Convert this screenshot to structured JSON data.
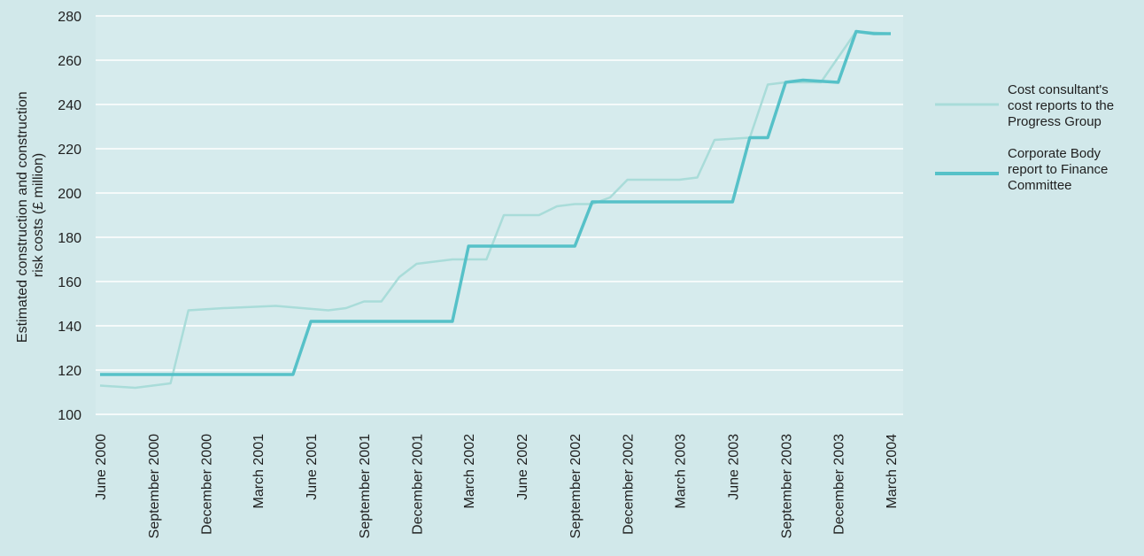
{
  "chart_data": {
    "type": "line",
    "ylabel_lines": [
      "Estimated construction and construction",
      "risk costs (£ million)"
    ],
    "ylim": [
      100,
      280
    ],
    "yticks": [
      100,
      120,
      140,
      160,
      180,
      200,
      220,
      240,
      260,
      280
    ],
    "xlim": [
      "2000-06-01",
      "2004-03-01"
    ],
    "xticks": [
      {
        "date": "2000-06-01",
        "label": "June 2000"
      },
      {
        "date": "2000-09-01",
        "label": "September 2000"
      },
      {
        "date": "2000-12-01",
        "label": "December 2000"
      },
      {
        "date": "2001-03-01",
        "label": "March 2001"
      },
      {
        "date": "2001-06-01",
        "label": "June 2001"
      },
      {
        "date": "2001-09-01",
        "label": "September 2001"
      },
      {
        "date": "2001-12-01",
        "label": "December 2001"
      },
      {
        "date": "2002-03-01",
        "label": "March 2002"
      },
      {
        "date": "2002-06-01",
        "label": "June 2002"
      },
      {
        "date": "2002-09-01",
        "label": "September 2002"
      },
      {
        "date": "2002-12-01",
        "label": "December 2002"
      },
      {
        "date": "2003-03-01",
        "label": "March 2003"
      },
      {
        "date": "2003-06-01",
        "label": "June 2003"
      },
      {
        "date": "2003-09-01",
        "label": "September 2003"
      },
      {
        "date": "2003-12-01",
        "label": "December 2003"
      },
      {
        "date": "2004-03-01",
        "label": "March 2004"
      }
    ],
    "grid": true,
    "legend_position": "right",
    "series": [
      {
        "name_lines": [
          "Cost consultant's",
          "cost reports to the",
          "Progress Group"
        ],
        "color": "#a9dcd9",
        "points": [
          [
            "2000-06-01",
            113
          ],
          [
            "2000-08-01",
            112
          ],
          [
            "2000-10-01",
            114
          ],
          [
            "2000-11-01",
            147
          ],
          [
            "2001-01-01",
            148
          ],
          [
            "2001-04-01",
            149
          ],
          [
            "2001-07-01",
            147
          ],
          [
            "2001-08-01",
            148
          ],
          [
            "2001-09-01",
            151
          ],
          [
            "2001-10-01",
            151
          ],
          [
            "2001-11-01",
            162
          ],
          [
            "2001-12-01",
            168
          ],
          [
            "2002-01-01",
            169
          ],
          [
            "2002-02-01",
            170
          ],
          [
            "2002-04-01",
            170
          ],
          [
            "2002-05-01",
            190
          ],
          [
            "2002-07-01",
            190
          ],
          [
            "2002-08-01",
            194
          ],
          [
            "2002-09-01",
            195
          ],
          [
            "2002-10-01",
            195
          ],
          [
            "2002-11-01",
            198
          ],
          [
            "2002-12-01",
            206
          ],
          [
            "2003-03-01",
            206
          ],
          [
            "2003-04-01",
            207
          ],
          [
            "2003-05-01",
            224
          ],
          [
            "2003-07-01",
            225
          ],
          [
            "2003-08-01",
            249
          ],
          [
            "2003-09-01",
            250
          ],
          [
            "2003-11-01",
            250
          ],
          [
            "2004-01-01",
            273
          ],
          [
            "2004-03-01",
            272
          ]
        ]
      },
      {
        "name_lines": [
          "Corporate Body",
          "report to Finance",
          "Committee"
        ],
        "color": "#56c1c8",
        "points": [
          [
            "2000-06-01",
            118
          ],
          [
            "2001-05-01",
            118
          ],
          [
            "2001-06-01",
            142
          ],
          [
            "2002-02-01",
            142
          ],
          [
            "2002-03-01",
            176
          ],
          [
            "2002-09-01",
            176
          ],
          [
            "2002-10-01",
            196
          ],
          [
            "2003-06-01",
            196
          ],
          [
            "2003-07-01",
            225
          ],
          [
            "2003-08-01",
            225
          ],
          [
            "2003-09-01",
            250
          ],
          [
            "2003-10-01",
            251
          ],
          [
            "2003-12-01",
            250
          ],
          [
            "2004-01-01",
            273
          ],
          [
            "2004-02-01",
            272
          ],
          [
            "2004-03-01",
            272
          ]
        ]
      }
    ]
  }
}
